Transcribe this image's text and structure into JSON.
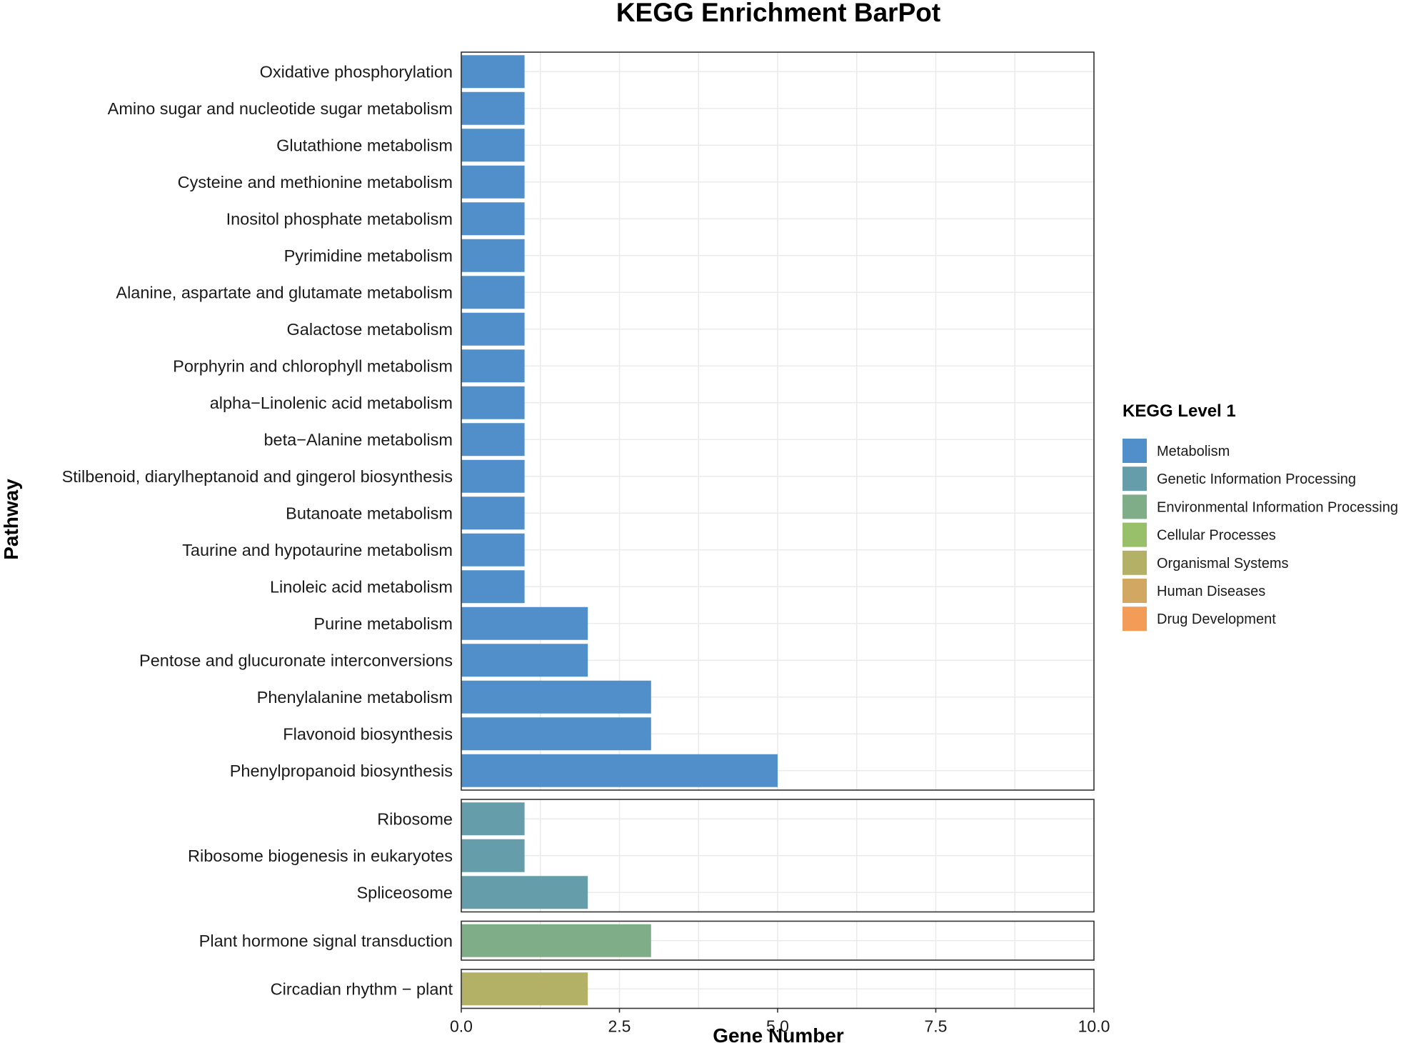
{
  "chart_data": {
    "type": "bar",
    "orientation": "horizontal",
    "title": "KEGG Enrichment BarPot",
    "xlabel": "Gene Number",
    "ylabel": "Pathway",
    "xlim": [
      0,
      10
    ],
    "x_ticks": [
      "0.0",
      "2.5",
      "5.0",
      "7.5",
      "10.0"
    ],
    "x_tick_values": [
      0,
      2.5,
      5,
      7.5,
      10
    ],
    "grid": true,
    "legend": {
      "title": "KEGG Level 1",
      "position": "right",
      "items": [
        {
          "label": "Metabolism",
          "color": "#508FC9"
        },
        {
          "label": "Genetic Information Processing",
          "color": "#669DAA"
        },
        {
          "label": "Environmental Information Processing",
          "color": "#7FAD88"
        },
        {
          "label": "Cellular Processes",
          "color": "#98BF6A"
        },
        {
          "label": "Organismal Systems",
          "color": "#B3B166"
        },
        {
          "label": "Human Diseases",
          "color": "#D2A762"
        },
        {
          "label": "Drug Development",
          "color": "#F29C57"
        }
      ]
    },
    "panels": [
      {
        "group": "Metabolism",
        "color": "#508FC9",
        "categories": [
          "Oxidative phosphorylation",
          "Amino sugar and nucleotide sugar metabolism",
          "Glutathione metabolism",
          "Cysteine and methionine metabolism",
          "Inositol phosphate metabolism",
          "Pyrimidine metabolism",
          "Alanine, aspartate and glutamate metabolism",
          "Galactose metabolism",
          "Porphyrin and chlorophyll metabolism",
          "alpha−Linolenic acid metabolism",
          "beta−Alanine metabolism",
          "Stilbenoid, diarylheptanoid and gingerol biosynthesis",
          "Butanoate metabolism",
          "Taurine and hypotaurine metabolism",
          "Linoleic acid metabolism",
          "Purine metabolism",
          "Pentose and glucuronate interconversions",
          "Phenylalanine metabolism",
          "Flavonoid biosynthesis",
          "Phenylpropanoid biosynthesis"
        ],
        "values": [
          1,
          1,
          1,
          1,
          1,
          1,
          1,
          1,
          1,
          1,
          1,
          1,
          1,
          1,
          1,
          2,
          2,
          3,
          3,
          5
        ]
      },
      {
        "group": "Genetic Information Processing",
        "color": "#669DAA",
        "categories": [
          "Ribosome",
          "Ribosome biogenesis in eukaryotes",
          "Spliceosome"
        ],
        "values": [
          1,
          1,
          2
        ]
      },
      {
        "group": "Environmental Information Processing",
        "color": "#7FAD88",
        "categories": [
          "Plant hormone signal transduction"
        ],
        "values": [
          3
        ]
      },
      {
        "group": "Organismal Systems",
        "color": "#B3B166",
        "categories": [
          "Circadian rhythm − plant"
        ],
        "values": [
          2
        ]
      }
    ]
  }
}
